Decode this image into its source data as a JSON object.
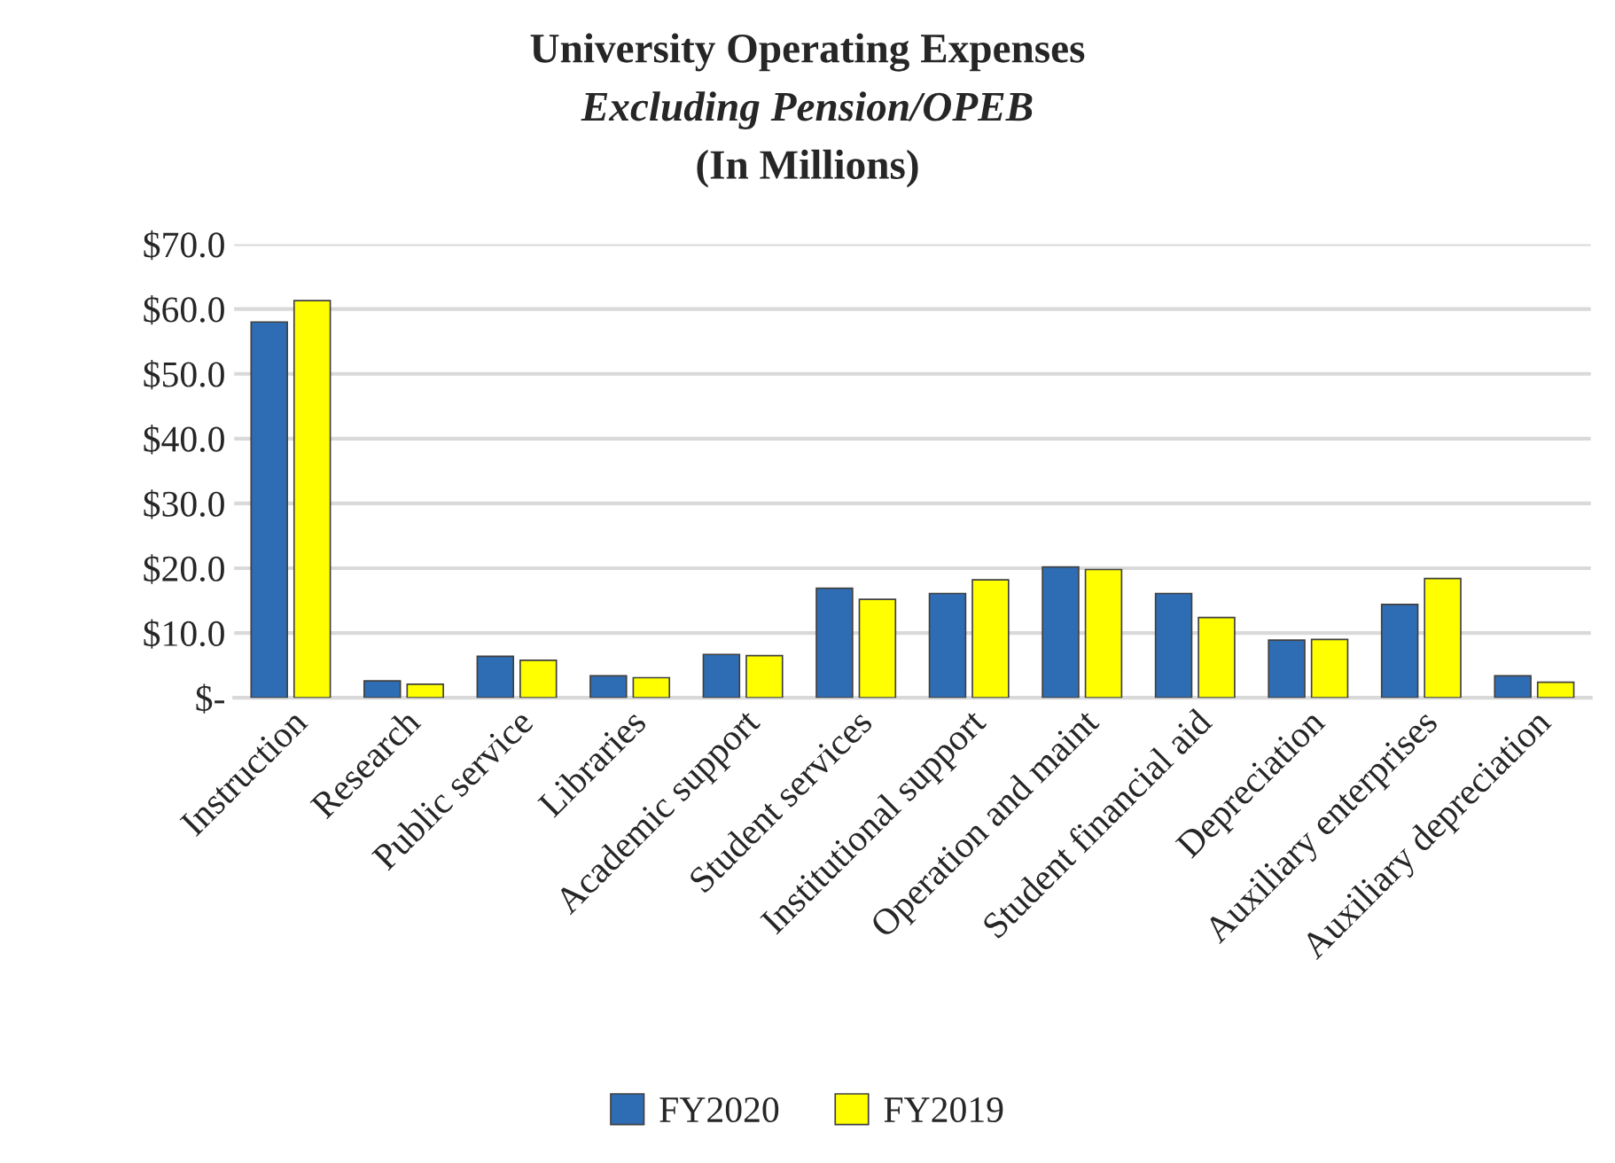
{
  "chart_data": {
    "type": "bar",
    "title": "University Operating Expenses",
    "subtitle": "Excluding Pension/OPEB",
    "annotations": [
      "(In Millions)"
    ],
    "categories": [
      "Instruction",
      "Research",
      "Public service",
      "Libraries",
      "Academic support",
      "Student services",
      "Institutional support",
      "Operation and maint",
      "Student financial aid",
      "Depreciation",
      "Auxiliary enterprises",
      "Auxiliary depreciation"
    ],
    "series": [
      {
        "name": "FY2020",
        "color": "#2e6db4",
        "values": [
          58.0,
          2.6,
          6.4,
          3.4,
          6.7,
          16.9,
          16.1,
          20.2,
          16.1,
          8.9,
          14.4,
          3.4
        ]
      },
      {
        "name": "FY2019",
        "color": "#ffff00",
        "values": [
          61.3,
          2.1,
          5.8,
          3.1,
          6.5,
          15.2,
          18.2,
          19.8,
          12.4,
          9.0,
          18.4,
          2.4
        ]
      }
    ],
    "ylim": [
      0,
      70
    ],
    "yticks": [
      {
        "value": 0,
        "label": "$-"
      },
      {
        "value": 10,
        "label": "$10.0"
      },
      {
        "value": 20,
        "label": "$20.0"
      },
      {
        "value": 30,
        "label": "$30.0"
      },
      {
        "value": 40,
        "label": "$40.0"
      },
      {
        "value": 50,
        "label": "$50.0"
      },
      {
        "value": 60,
        "label": "$60.0"
      },
      {
        "value": 70,
        "label": "$70.0"
      }
    ],
    "grid": "y",
    "legend": "bottom"
  }
}
